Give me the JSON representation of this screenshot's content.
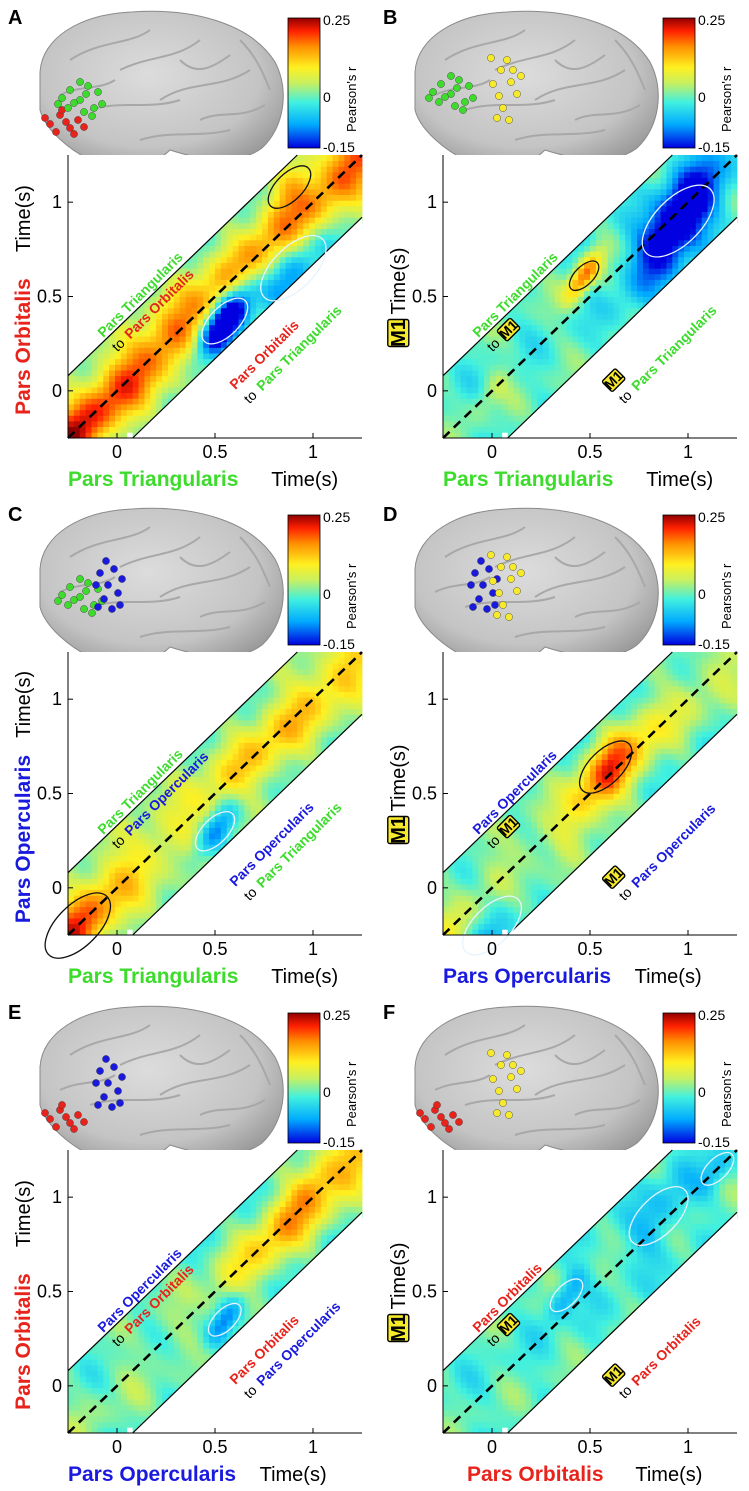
{
  "figure": {
    "colors": {
      "orbitalis": "#e8231c",
      "triangularis": "#3ddc2c",
      "opercularis": "#1a1adf",
      "m1": "#f6ea2a",
      "m1_outline": "#000000",
      "contour_sig": "#111111",
      "contour_neg": "#e6f4ff"
    },
    "colorbar": {
      "max_label": "0.25",
      "mid_label": "0",
      "min_label": "-0.15",
      "title": "Pearson's r"
    },
    "axis": {
      "time_label": "Time(s)",
      "x_ticks": [
        "0",
        "0.5",
        "1"
      ],
      "y_ticks": [
        "0",
        "0.5",
        "1"
      ]
    },
    "region_names": {
      "orbitalis": "Pars Orbitalis",
      "triangularis": "Pars Triangularis",
      "opercularis": "Pars Opercularis",
      "m1": "M1"
    },
    "connector_word": "to"
  },
  "chart_data": [
    {
      "panel": "A",
      "type": "heatmap",
      "xlabel_region": "triangularis",
      "ylabel_region": "orbitalis",
      "xlim": [
        -0.25,
        1.25
      ],
      "ylim": [
        -0.25,
        1.25
      ],
      "clim": [
        -0.15,
        0.25
      ],
      "colorbar_label": "Pearson's r",
      "upper_text": {
        "from": "triangularis",
        "to": "orbitalis"
      },
      "lower_text": {
        "from": "orbitalis",
        "to": "triangularis"
      },
      "ridge": [
        [
          -0.25,
          0.2
        ],
        [
          0.25,
          0.17
        ],
        [
          0.6,
          0.12
        ],
        [
          1.0,
          0.16
        ],
        [
          1.25,
          0.18
        ]
      ],
      "blobs": [
        {
          "t": 0.88,
          "lag": 0.2,
          "r": 0.13,
          "amp": 0.06
        },
        {
          "t": 0.55,
          "lag": -0.18,
          "r": 0.14,
          "amp": -0.28
        },
        {
          "t": 0.9,
          "lag": -0.25,
          "r": 0.2,
          "amp": -0.1
        }
      ],
      "base": 0.02
    },
    {
      "panel": "B",
      "type": "heatmap",
      "xlabel_region": "triangularis",
      "ylabel_region": "m1",
      "xlim": [
        -0.25,
        1.25
      ],
      "ylim": [
        -0.25,
        1.25
      ],
      "clim": [
        -0.15,
        0.25
      ],
      "colorbar_label": "Pearson's r",
      "upper_text": {
        "from": "triangularis",
        "to": "m1"
      },
      "lower_text": {
        "from": "m1",
        "to": "triangularis"
      },
      "ridge": [
        [
          -0.25,
          0.0
        ],
        [
          1.25,
          0.0
        ]
      ],
      "blobs": [
        {
          "t": 0.47,
          "lag": 0.14,
          "r": 0.09,
          "amp": 0.18
        },
        {
          "t": 0.95,
          "lag": -0.05,
          "r": 0.22,
          "amp": -0.23
        },
        {
          "t": 0.0,
          "lag": 0.0,
          "r": 0.1,
          "amp": 0.04
        }
      ],
      "base": 0.0
    },
    {
      "panel": "C",
      "type": "heatmap",
      "xlabel_region": "triangularis",
      "ylabel_region": "opercularis",
      "xlim": [
        -0.25,
        1.25
      ],
      "ylim": [
        -0.25,
        1.25
      ],
      "clim": [
        -0.15,
        0.25
      ],
      "colorbar_label": "Pearson's r",
      "upper_text": {
        "from": "triangularis",
        "to": "opercularis"
      },
      "lower_text": {
        "from": "opercularis",
        "to": "triangularis"
      },
      "ridge": [
        [
          -0.25,
          0.13
        ],
        [
          0.3,
          0.06
        ],
        [
          0.75,
          0.1
        ],
        [
          1.25,
          0.1
        ]
      ],
      "blobs": [
        {
          "t": 0.5,
          "lag": -0.2,
          "r": 0.12,
          "amp": -0.12
        },
        {
          "t": -0.2,
          "lag": 0.0,
          "r": 0.2,
          "amp": 0.05
        }
      ],
      "base": 0.02
    },
    {
      "panel": "D",
      "type": "heatmap",
      "xlabel_region": "opercularis",
      "ylabel_region": "m1",
      "xlim": [
        -0.25,
        1.25
      ],
      "ylim": [
        -0.25,
        1.25
      ],
      "clim": [
        -0.15,
        0.25
      ],
      "colorbar_label": "Pearson's r",
      "upper_text": {
        "from": "opercularis",
        "to": "m1"
      },
      "lower_text": {
        "from": "m1",
        "to": "opercularis"
      },
      "ridge": [
        [
          -0.25,
          0.06
        ],
        [
          0.3,
          0.05
        ],
        [
          0.6,
          0.16
        ],
        [
          0.9,
          0.06
        ],
        [
          1.25,
          0.05
        ]
      ],
      "blobs": [
        {
          "t": 0.58,
          "lag": 0.06,
          "r": 0.16,
          "amp": 0.05
        },
        {
          "t": 0.0,
          "lag": -0.2,
          "r": 0.18,
          "amp": -0.06
        }
      ],
      "base": 0.0
    },
    {
      "panel": "E",
      "type": "heatmap",
      "xlabel_region": "opercularis",
      "ylabel_region": "orbitalis",
      "xlim": [
        -0.25,
        1.25
      ],
      "ylim": [
        -0.25,
        1.25
      ],
      "clim": [
        -0.15,
        0.25
      ],
      "colorbar_label": "Pearson's r",
      "upper_text": {
        "from": "opercularis",
        "to": "orbitalis"
      },
      "lower_text": {
        "from": "orbitalis",
        "to": "opercularis"
      },
      "ridge": [
        [
          -0.25,
          0.02
        ],
        [
          0.4,
          0.03
        ],
        [
          0.85,
          0.14
        ],
        [
          1.25,
          0.13
        ]
      ],
      "blobs": [
        {
          "t": 0.55,
          "lag": -0.2,
          "r": 0.1,
          "amp": -0.1
        },
        {
          "t": 1.0,
          "lag": 0.1,
          "r": 0.12,
          "amp": 0.04
        }
      ],
      "base": 0.0
    },
    {
      "panel": "F",
      "type": "heatmap",
      "xlabel_region": "orbitalis",
      "ylabel_region": "m1",
      "xlim": [
        -0.25,
        1.25
      ],
      "ylim": [
        -0.25,
        1.25
      ],
      "clim": [
        -0.15,
        0.25
      ],
      "colorbar_label": "Pearson's r",
      "upper_text": {
        "from": "orbitalis",
        "to": "m1"
      },
      "lower_text": {
        "from": "m1",
        "to": "orbitalis"
      },
      "ridge": [
        [
          -0.25,
          0.0
        ],
        [
          1.25,
          0.0
        ]
      ],
      "blobs": [
        {
          "t": 0.38,
          "lag": 0.1,
          "r": 0.1,
          "amp": -0.08
        },
        {
          "t": 0.85,
          "lag": 0.05,
          "r": 0.18,
          "amp": -0.06
        },
        {
          "t": 1.15,
          "lag": 0.0,
          "r": 0.1,
          "amp": -0.05
        }
      ],
      "base": 0.0
    }
  ],
  "brains": [
    {
      "panel": "A",
      "electrodes": [
        "orbitalis",
        "triangularis"
      ]
    },
    {
      "panel": "B",
      "electrodes": [
        "triangularis",
        "m1"
      ]
    },
    {
      "panel": "C",
      "electrodes": [
        "triangularis",
        "opercularis"
      ]
    },
    {
      "panel": "D",
      "electrodes": [
        "opercularis",
        "m1"
      ]
    },
    {
      "panel": "E",
      "electrodes": [
        "orbitalis",
        "opercularis"
      ]
    },
    {
      "panel": "F",
      "electrodes": [
        "orbitalis",
        "m1"
      ]
    }
  ]
}
